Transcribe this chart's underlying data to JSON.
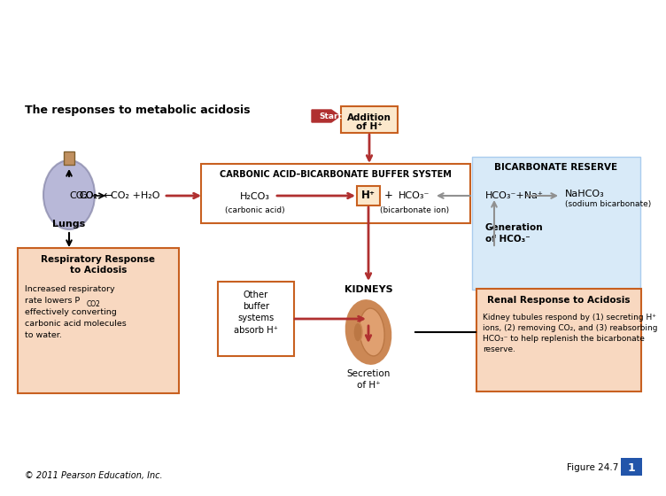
{
  "bg_color": "#ffffff",
  "title_text": "The responses to metabolic acidosis",
  "start_label": "Start",
  "addition_line1": "Addition",
  "addition_line2": "of H⁺",
  "buffer_system_title": "CARBONIC ACID–BICARBONATE BUFFER SYSTEM",
  "h2co3_text": "H₂CO₃",
  "carbonic_acid_label": "(carbonic acid)",
  "hplus_text": "H⁺",
  "plus_text": "+",
  "hco3_text": "HCO₃⁻",
  "bicarbonate_ion_label": "(bicarbonate ion)",
  "co2_text": "CO₂",
  "co2_arrow": "←",
  "co2_water_text": "CO₂ +H₂O",
  "lungs_text": "Lungs",
  "bicarb_reserve_title": "BICARBONATE RESERVE",
  "hco3_na_text": "HCO₃⁻+Na⁺",
  "nahco3_text": "NaHCO₃",
  "sodium_bicarb_label": "(sodium bicarbonate)",
  "generation_text": "Generation\nof HCO₃⁻",
  "kidneys_text": "KIDNEYS",
  "secretion_text": "Secretion\nof H⁺",
  "other_buffer_text": "Other\nbuffer\nsystems\nabsorb H⁺",
  "resp_response_title": "Respiratory Response\nto Acidosis",
  "resp_response_body": "Increased respiratory\nrate lowers P",
  "resp_co2_sub": "CO2",
  "resp_response_body2": ",\neffectively converting\ncarbonic acid molecules\nto water.",
  "renal_response_title": "Renal Response to Acidosis",
  "renal_response_body": "Kidney tubules respond by (1) secreting H⁺\nions, (2) removing CO₂, and (3) reabsorbing\nHCO₃⁻ to help replenish the bicarbonate\nreserve.",
  "figure_label": "Figure 24.7",
  "copyright_text": "© 2011 Pearson Education, Inc.",
  "red_color": "#b03030",
  "orange_border": "#c86020",
  "light_orange_bg": "#f8d8c0",
  "light_blue_bg": "#d8eaf8",
  "white": "#ffffff",
  "gray_arrow": "#909090",
  "lung_fill": "#a0a0cc",
  "lung_edge": "#8888aa",
  "bronchus_fill": "#c09060",
  "bronchus_edge": "#806030",
  "kidney_outer": "#cc8855",
  "kidney_inner": "#dd9966",
  "kidney_hilum": "#bb7744",
  "blue_num_bg": "#2255aa"
}
